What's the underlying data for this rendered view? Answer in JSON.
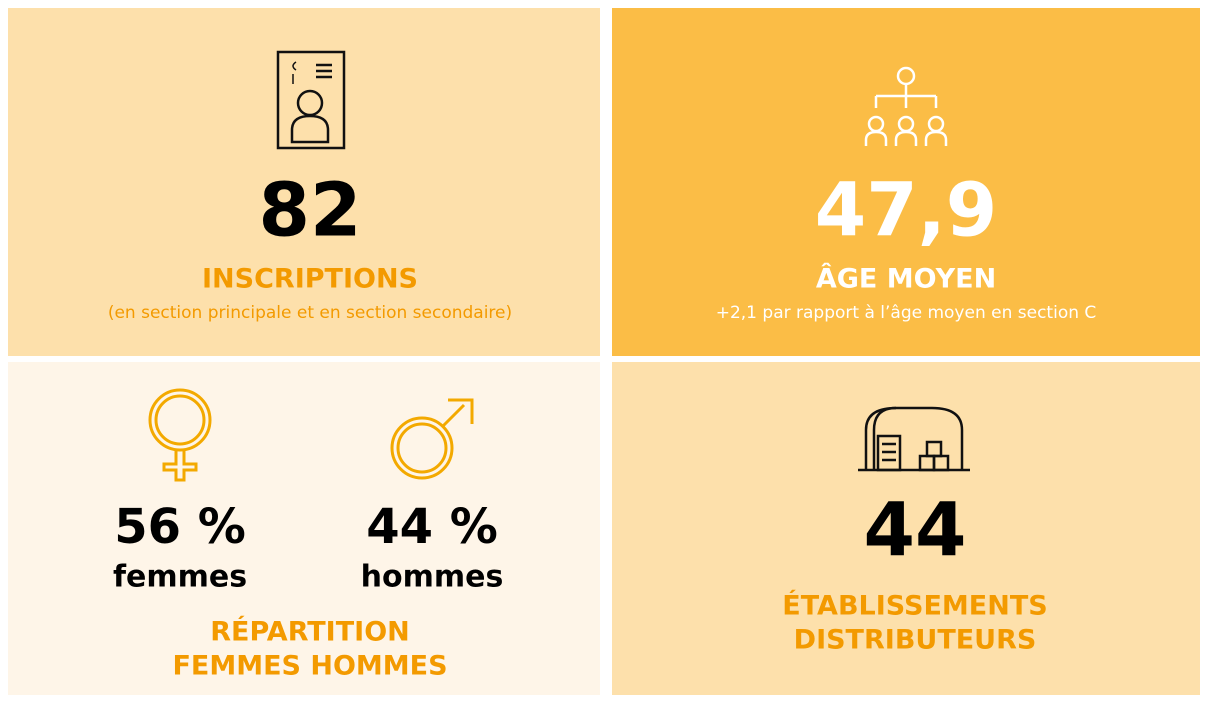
{
  "inscriptions": {
    "value": "82",
    "label": "INSCRIPTIONS",
    "note": "(en section principale et en section secondaire)"
  },
  "age": {
    "value": "47,9",
    "label": "ÂGE MOYEN",
    "note": "+2,1 par rapport à l’âge moyen en section C"
  },
  "repartition": {
    "women": {
      "value": "56 %",
      "label": "femmes"
    },
    "men": {
      "value": "44 %",
      "label": "hommes"
    },
    "title": [
      "RÉPARTITION",
      "FEMMES HOMMES"
    ]
  },
  "etablissements": {
    "value": "44",
    "label": [
      "ÉTABLISSEMENTS",
      "DISTRIBUTEURS"
    ]
  }
}
